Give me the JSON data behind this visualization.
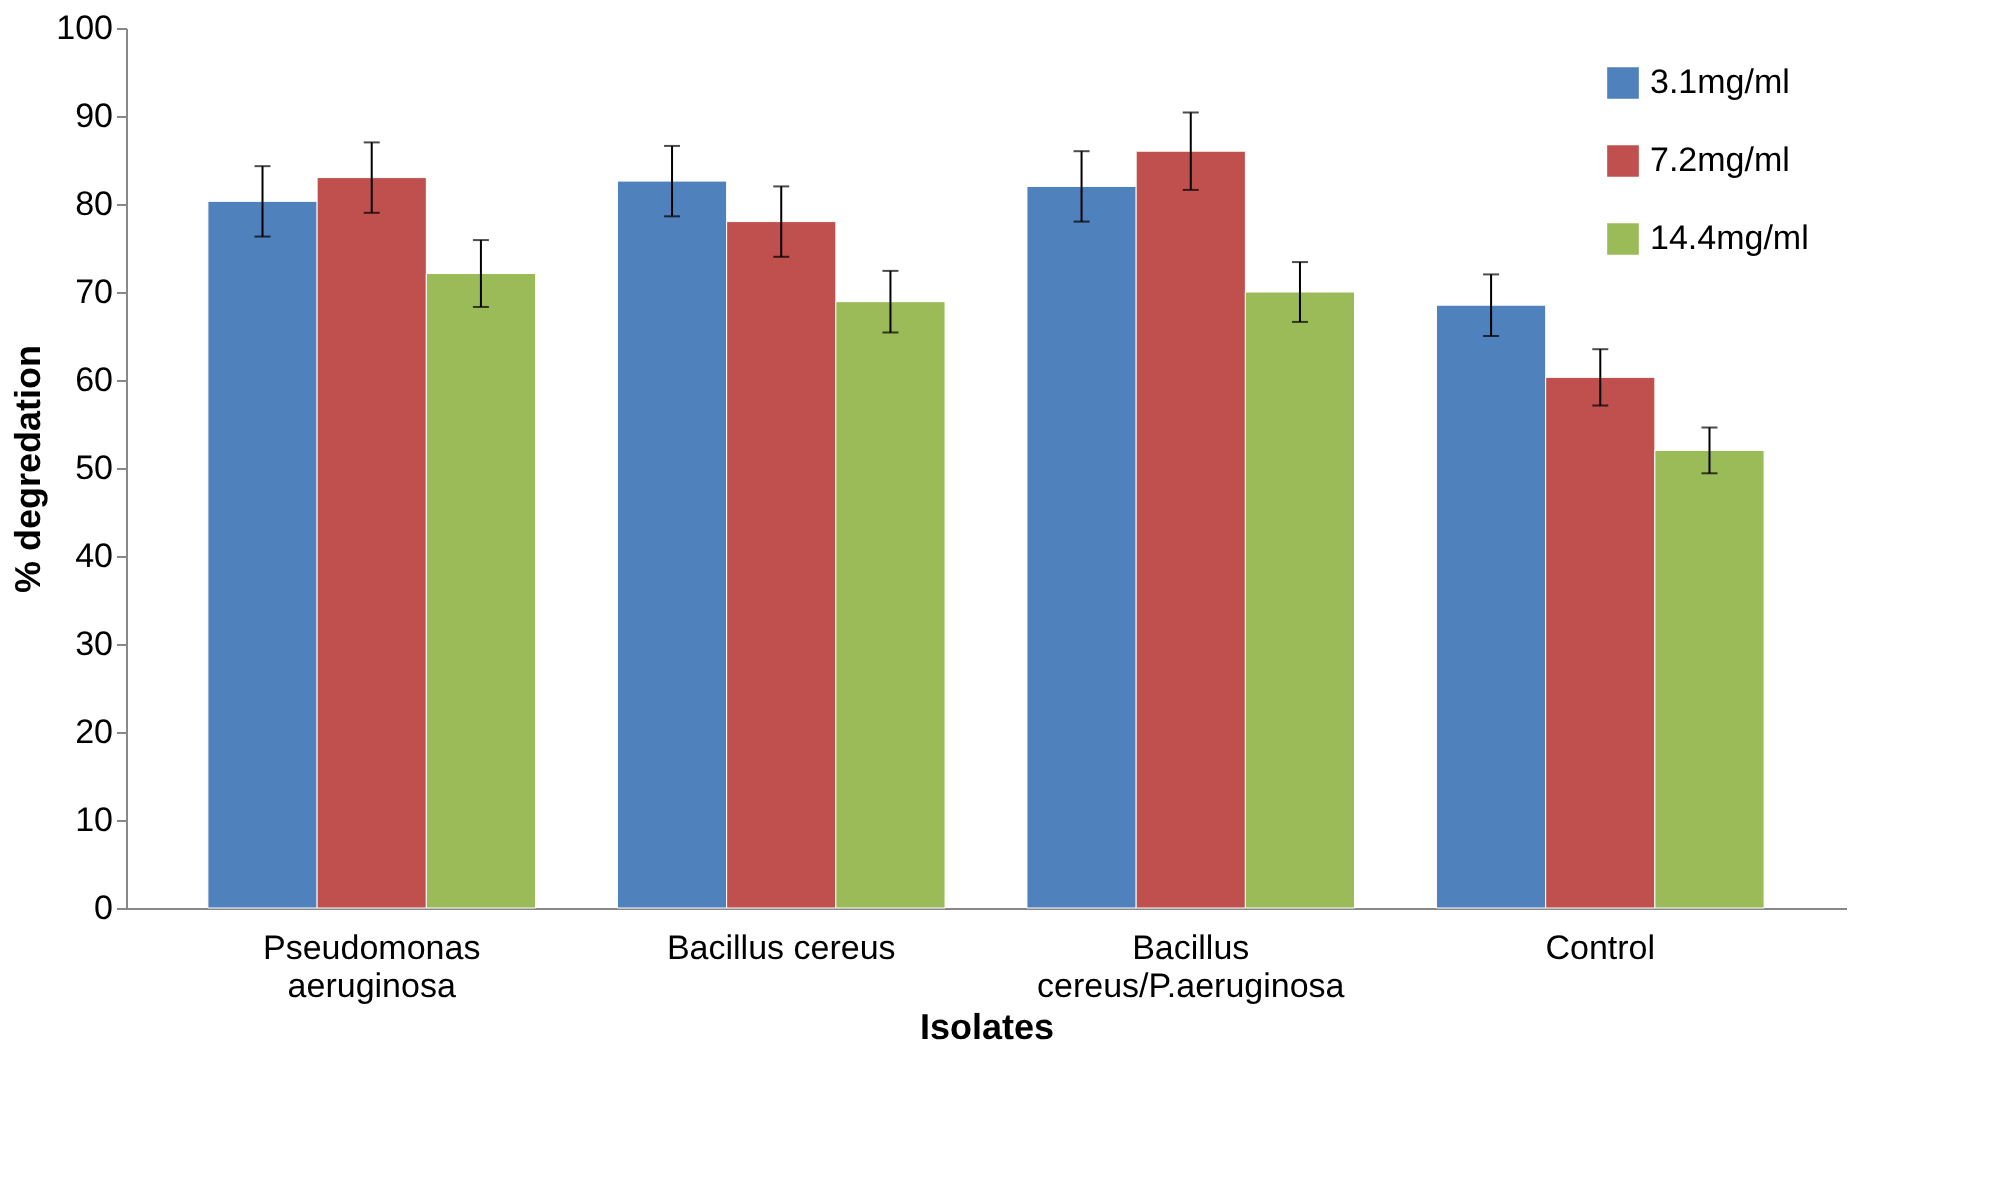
{
  "chart_data": {
    "type": "bar",
    "xlabel": "Isolates",
    "ylabel": "% degredation",
    "categories": [
      "Pseudomonas aeruginosa",
      "Bacillus cereus",
      "Bacillus cereus/P.aeruginosa",
      "Control"
    ],
    "series": [
      {
        "name": "3.1mg/ml",
        "color": "#4f81bd",
        "values": [
          80.3,
          82.6,
          82,
          68.5
        ],
        "errors": [
          4,
          4,
          4,
          3.5
        ]
      },
      {
        "name": "7.2mg/ml",
        "color": "#c0504d",
        "values": [
          83,
          78,
          86,
          60.3
        ],
        "errors": [
          4,
          4,
          4.4,
          3.2
        ]
      },
      {
        "name": "14.4mg/ml",
        "color": "#9bbb59",
        "values": [
          72.1,
          68.9,
          70,
          52
        ],
        "errors": [
          3.8,
          3.5,
          3.4,
          2.6
        ]
      }
    ],
    "ylim": [
      0,
      100
    ],
    "yticks": [
      0,
      10,
      20,
      30,
      40,
      50,
      60,
      70,
      80,
      90,
      100
    ],
    "grid": false,
    "legend": "top right"
  }
}
